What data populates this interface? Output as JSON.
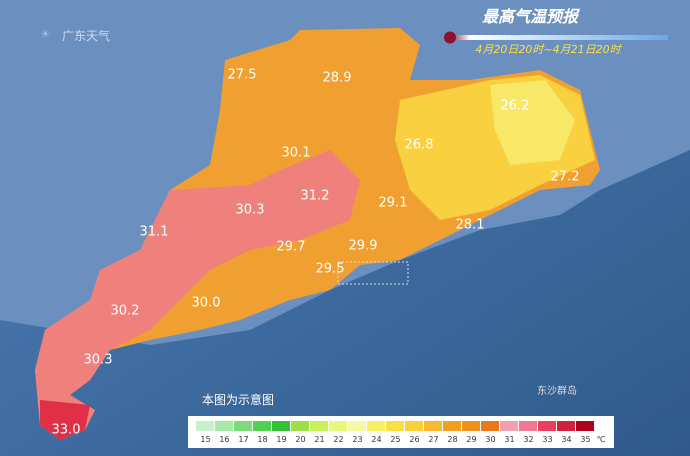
{
  "header": {
    "logo": "广东天气",
    "title": "最高气温预报",
    "subtitle": "4月20日20时~4月21日20时"
  },
  "labels": [
    "27.5",
    "28.9",
    "26.2",
    "26.8",
    "30.1",
    "31.2",
    "27.2",
    "29.1",
    "30.3",
    "31.1",
    "28.1",
    "29.7",
    "29.9",
    "29.5",
    "30.0",
    "30.2",
    "30.3",
    "33.0"
  ],
  "note": "本图为示意图",
  "island": "东沙群岛",
  "legend": {
    "unit": "℃",
    "items": [
      {
        "value": 15,
        "color": "#c8f0c8"
      },
      {
        "value": 16,
        "color": "#a6e8a6"
      },
      {
        "value": 17,
        "color": "#7cdc7c"
      },
      {
        "value": 18,
        "color": "#52d052"
      },
      {
        "value": 19,
        "color": "#34c034"
      },
      {
        "value": 20,
        "color": "#9ede48"
      },
      {
        "value": 21,
        "color": "#c8f058"
      },
      {
        "value": 22,
        "color": "#e6f87c"
      },
      {
        "value": 23,
        "color": "#f8f8a4"
      },
      {
        "value": 24,
        "color": "#f8f064"
      },
      {
        "value": 25,
        "color": "#f8e044"
      },
      {
        "value": 26,
        "color": "#f8d038"
      },
      {
        "value": 27,
        "color": "#f8b830"
      },
      {
        "value": 28,
        "color": "#f0a020"
      },
      {
        "value": 29,
        "color": "#f09018"
      },
      {
        "value": 30,
        "color": "#e87818"
      },
      {
        "value": 31,
        "color": "#f0a0b0"
      },
      {
        "value": 32,
        "color": "#f07890"
      },
      {
        "value": 33,
        "color": "#e84060"
      },
      {
        "value": 34,
        "color": "#d02040"
      },
      {
        "value": 35,
        "color": "#b00020"
      }
    ]
  }
}
